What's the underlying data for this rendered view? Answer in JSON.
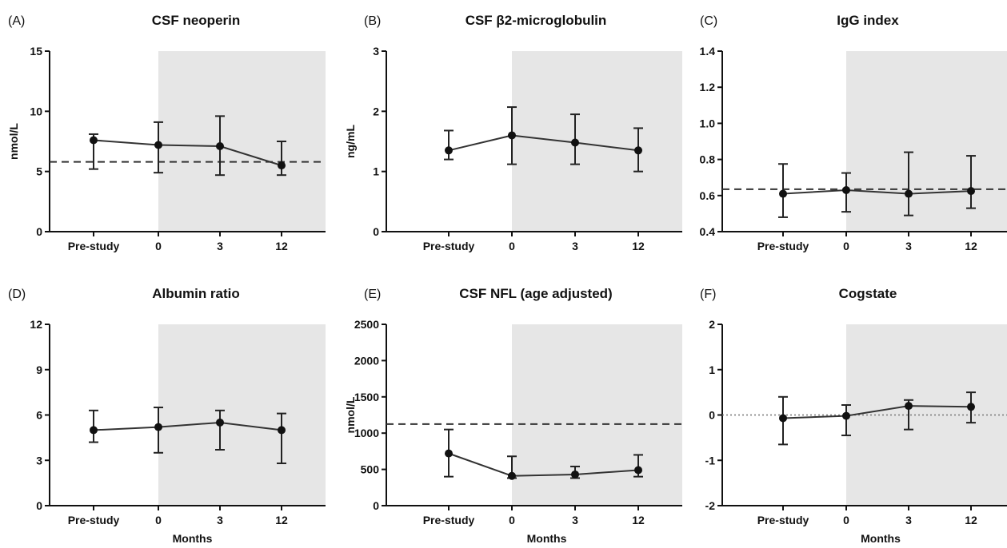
{
  "chart_data": [
    {
      "type": "line",
      "panel_label": "(A)",
      "title": "CSF neoperin",
      "xlabel": "",
      "ylabel": "nmol/L",
      "categories": [
        "Pre-study",
        "0",
        "3",
        "12"
      ],
      "ylim": [
        0,
        15
      ],
      "yticks": [
        "0",
        "5",
        "10",
        "15"
      ],
      "shaded_from_category": "0",
      "reference_line": {
        "y": 5.8,
        "style": "dashed"
      },
      "series": [
        {
          "marker": "circle",
          "values": [
            7.6,
            7.2,
            7.1,
            5.5
          ],
          "err_low": [
            5.2,
            4.9,
            4.7,
            4.7
          ],
          "err_high": [
            8.1,
            9.1,
            9.6,
            7.5
          ]
        }
      ]
    },
    {
      "type": "line",
      "panel_label": "(B)",
      "title": "CSF β2-microglobulin",
      "xlabel": "",
      "ylabel": "ng/mL",
      "categories": [
        "Pre-study",
        "0",
        "3",
        "12"
      ],
      "ylim": [
        0,
        3
      ],
      "yticks": [
        "0",
        "1",
        "2",
        "3"
      ],
      "shaded_from_category": "0",
      "reference_line": null,
      "series": [
        {
          "marker": "circle",
          "values": [
            1.35,
            1.6,
            1.48,
            1.35
          ],
          "err_low": [
            1.2,
            1.12,
            1.12,
            1.0
          ],
          "err_high": [
            1.68,
            2.07,
            1.95,
            1.72
          ]
        }
      ]
    },
    {
      "type": "line",
      "panel_label": "(C)",
      "title": "IgG index",
      "xlabel": "",
      "ylabel": "",
      "categories": [
        "Pre-study",
        "0",
        "3",
        "12"
      ],
      "ylim": [
        0.4,
        1.4
      ],
      "yticks": [
        "0.4",
        "0.6",
        "0.8",
        "1.0",
        "1.2",
        "1.4"
      ],
      "shaded_from_category": "0",
      "reference_line": {
        "y": 0.635,
        "style": "dashed"
      },
      "series": [
        {
          "marker": "circle",
          "values": [
            0.61,
            0.63,
            0.61,
            0.625
          ],
          "err_low": [
            0.48,
            0.51,
            0.49,
            0.53
          ],
          "err_high": [
            0.775,
            0.725,
            0.84,
            0.82
          ]
        }
      ]
    },
    {
      "type": "line",
      "panel_label": "(D)",
      "title": "Albumin ratio",
      "xlabel": "Months",
      "ylabel": "",
      "categories": [
        "Pre-study",
        "0",
        "3",
        "12"
      ],
      "ylim": [
        0,
        12
      ],
      "yticks": [
        "0",
        "3",
        "6",
        "9",
        "12"
      ],
      "shaded_from_category": "0",
      "reference_line": null,
      "series": [
        {
          "marker": "circle",
          "values": [
            5.0,
            5.2,
            5.5,
            5.0
          ],
          "err_low": [
            4.2,
            3.5,
            3.7,
            2.8
          ],
          "err_high": [
            6.3,
            6.5,
            6.3,
            6.1
          ]
        }
      ]
    },
    {
      "type": "line",
      "panel_label": "(E)",
      "title": "CSF NFL (age adjusted)",
      "xlabel": "Months",
      "ylabel": "nmol/L",
      "categories": [
        "Pre-study",
        "0",
        "3",
        "12"
      ],
      "ylim": [
        0,
        2500
      ],
      "yticks": [
        "0",
        "500",
        "1000",
        "1500",
        "2000",
        "2500"
      ],
      "shaded_from_category": "0",
      "reference_line": {
        "y": 1125,
        "style": "dashed"
      },
      "series": [
        {
          "marker": "circle",
          "values": [
            720,
            410,
            430,
            490
          ],
          "err_low": [
            400,
            380,
            380,
            400
          ],
          "err_high": [
            1050,
            680,
            540,
            700
          ]
        }
      ]
    },
    {
      "type": "line",
      "panel_label": "(F)",
      "title": "Cogstate",
      "xlabel": "Months",
      "ylabel": "",
      "categories": [
        "Pre-study",
        "0",
        "3",
        "12"
      ],
      "ylim": [
        -2,
        2
      ],
      "yticks": [
        "-2",
        "-1",
        "0",
        "1",
        "2"
      ],
      "shaded_from_category": "0",
      "reference_line": {
        "y": 0,
        "style": "dotted"
      },
      "series": [
        {
          "marker": "circle",
          "values": [
            -0.07,
            -0.02,
            0.2,
            0.18
          ],
          "err_low": [
            -0.65,
            -0.45,
            -0.32,
            -0.17
          ],
          "err_high": [
            0.4,
            0.22,
            0.33,
            0.5
          ]
        }
      ]
    }
  ]
}
